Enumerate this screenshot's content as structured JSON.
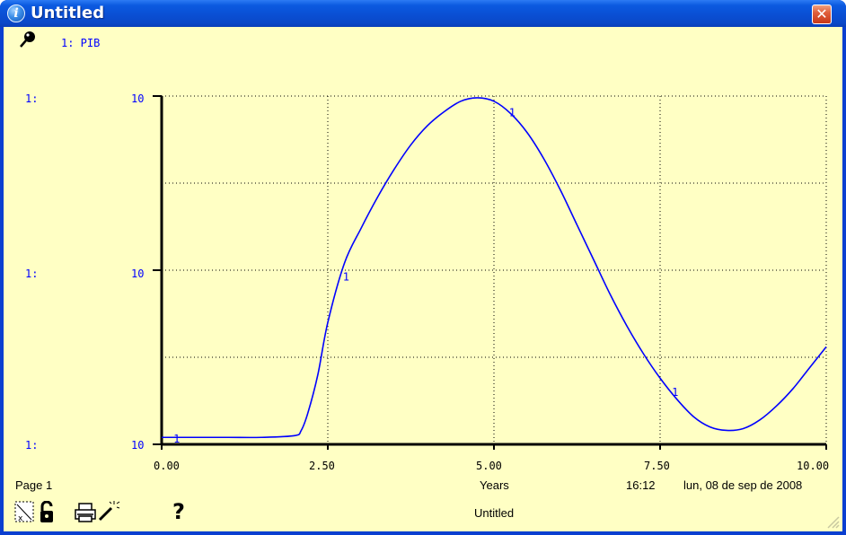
{
  "window": {
    "title": "Untitled",
    "title_icon": "info-icon",
    "close_icon": "close-icon"
  },
  "graph": {
    "legend_label": "1: PIB",
    "legend_icon": "pushpin-icon",
    "left_labels": [
      "1:",
      "1:",
      "1:"
    ],
    "footer_page": "Page 1",
    "footer_time": "16:12",
    "footer_date": "lun, 08 de sep de 2008",
    "footer_title": "Untitled",
    "bottom_icons": [
      "graph-type-icon",
      "lock-icon",
      "print-icon",
      "magic-wand-icon",
      "help-icon"
    ],
    "help_glyph": "?"
  },
  "chart_data": {
    "type": "line",
    "xlabel": "Years",
    "xlim": [
      0,
      10
    ],
    "x_ticks": [
      "0.00",
      "2.50",
      "5.00",
      "7.50",
      "10.00"
    ],
    "y_ticks_labels": [
      "10",
      "10",
      "10"
    ],
    "grid": true,
    "series": [
      {
        "name": "1",
        "color": "#0000ff",
        "marker_label": "1",
        "marker_x": [
          0.15,
          2.7,
          5.2,
          7.65
        ],
        "x": [
          0,
          0.5,
          1,
          1.5,
          2,
          2.1,
          2.2,
          2.35,
          2.5,
          2.75,
          3,
          3.25,
          3.5,
          3.75,
          4,
          4.25,
          4.5,
          4.75,
          5,
          5.25,
          5.5,
          5.75,
          6,
          6.25,
          6.5,
          6.75,
          7,
          7.25,
          7.5,
          7.75,
          8,
          8.25,
          8.5,
          8.75,
          9,
          9.25,
          9.5,
          9.75,
          10
        ],
        "y": [
          0.02,
          0.02,
          0.02,
          0.02,
          0.025,
          0.04,
          0.09,
          0.2,
          0.35,
          0.52,
          0.62,
          0.71,
          0.79,
          0.86,
          0.915,
          0.955,
          0.985,
          0.995,
          0.985,
          0.95,
          0.895,
          0.82,
          0.73,
          0.63,
          0.53,
          0.43,
          0.34,
          0.26,
          0.19,
          0.13,
          0.08,
          0.05,
          0.04,
          0.045,
          0.07,
          0.11,
          0.16,
          0.22,
          0.28
        ]
      }
    ]
  }
}
